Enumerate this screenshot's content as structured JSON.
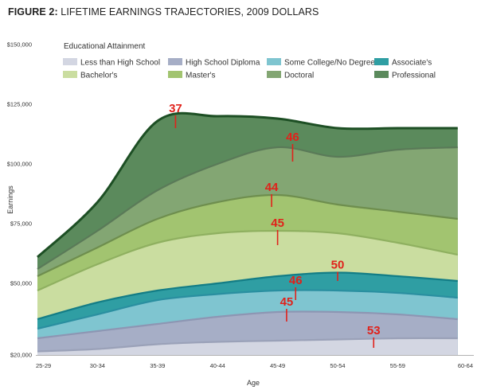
{
  "figure": {
    "title_bold": "FIGURE 2:",
    "title_rest": " LIFETIME EARNINGS TRAJECTORIES, 2009 DOLLARS"
  },
  "chart_data": {
    "type": "area",
    "title": "FIGURE 2: LIFETIME EARNINGS TRAJECTORIES, 2009 DOLLARS",
    "xlabel": "Age",
    "ylabel": "Earnings",
    "categories": [
      "25-29",
      "30-34",
      "35-39",
      "40-44",
      "45-49",
      "50-54",
      "55-59",
      "60-64"
    ],
    "y_ticks": [
      {
        "value": 20000,
        "label": "$20,000"
      },
      {
        "value": 50000,
        "label": "$50,000"
      },
      {
        "value": 75000,
        "label": "$75,000"
      },
      {
        "value": 100000,
        "label": "$100,000"
      },
      {
        "value": 125000,
        "label": "$125,000"
      },
      {
        "value": 150000,
        "label": "$150,000"
      }
    ],
    "ylim": [
      20000,
      150000
    ],
    "legend_title": "Educational Attainment",
    "legend_placement": "top",
    "series": [
      {
        "name": "Less than High School",
        "color": "#d3d6e2",
        "edge": "#9aa1b8",
        "values": [
          21500,
          22500,
          24500,
          25500,
          26000,
          26500,
          27000,
          27000
        ]
      },
      {
        "name": "High School Diploma",
        "color": "#a6aec6",
        "edge": "#8d96b3",
        "values": [
          27000,
          30000,
          33000,
          36000,
          38000,
          38000,
          37000,
          35000
        ]
      },
      {
        "name": "Some College/No Degree",
        "color": "#7fc5d0",
        "edge": "#2a8fa0",
        "values": [
          31000,
          37000,
          43000,
          45500,
          47000,
          47000,
          46000,
          44000
        ]
      },
      {
        "name": "Associate's",
        "color": "#2f9ea3",
        "edge": "#137d86",
        "values": [
          35000,
          42000,
          47000,
          50000,
          53000,
          54500,
          53000,
          51000
        ]
      },
      {
        "name": "Bachelor's",
        "color": "#cadda0",
        "edge": "#8fb060",
        "values": [
          47000,
          58000,
          67000,
          71000,
          72000,
          71000,
          67000,
          62000
        ]
      },
      {
        "name": "Master's",
        "color": "#a2c470",
        "edge": "#6e8e4e",
        "values": [
          53000,
          65000,
          77000,
          84000,
          87000,
          83000,
          80000,
          77000
        ]
      },
      {
        "name": "Doctoral",
        "color": "#83a673",
        "edge": "#5a7a58",
        "values": [
          56000,
          72000,
          89000,
          100000,
          107000,
          103000,
          106000,
          107000
        ]
      },
      {
        "name": "Professional",
        "color": "#5b8a5c",
        "edge": "#1d4f24",
        "values": [
          61000,
          84000,
          118000,
          120000,
          119000,
          115000,
          115000,
          115000
        ]
      }
    ],
    "annotations": [
      {
        "text": "37",
        "x_index": 2.3,
        "y_value": 121000,
        "line_bottom": 115000
      },
      {
        "text": "46",
        "x_index": 4.25,
        "y_value": 109000,
        "line_bottom": 101000
      },
      {
        "text": "44",
        "x_index": 3.9,
        "y_value": 88000,
        "line_bottom": 82000
      },
      {
        "text": "45",
        "x_index": 4.0,
        "y_value": 73000,
        "line_bottom": 66000
      },
      {
        "text": "50",
        "x_index": 5.0,
        "y_value": 55500,
        "line_bottom": 51000
      },
      {
        "text": "46",
        "x_index": 4.3,
        "y_value": 49000,
        "line_bottom": 43000
      },
      {
        "text": "45",
        "x_index": 4.15,
        "y_value": 40000,
        "line_bottom": 34000
      },
      {
        "text": "53",
        "x_index": 5.6,
        "y_value": 28000,
        "line_bottom": 23000
      }
    ]
  }
}
